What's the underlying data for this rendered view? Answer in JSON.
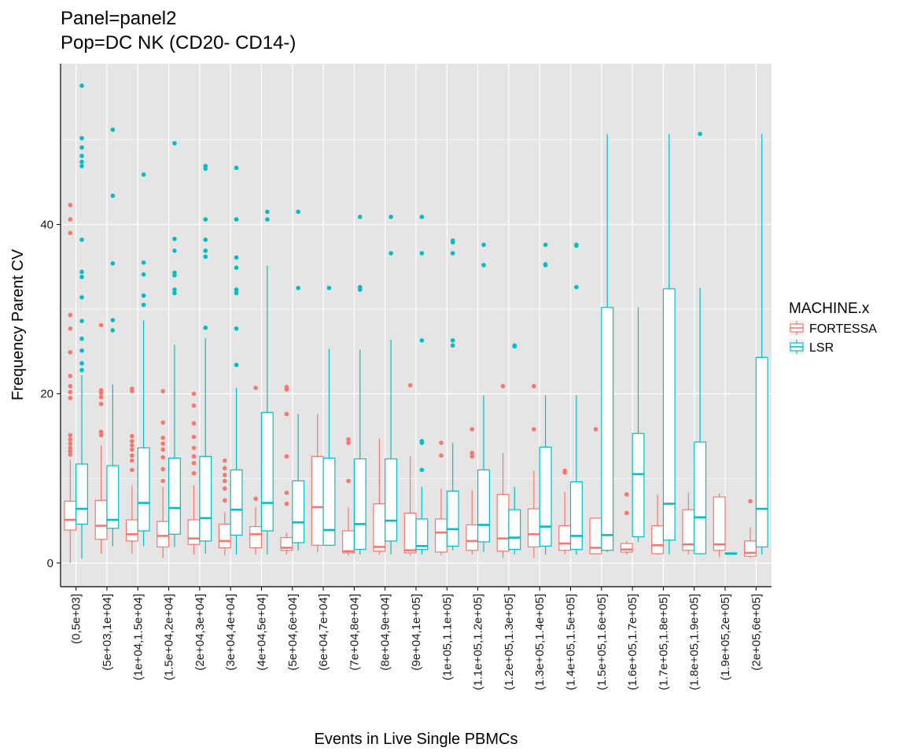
{
  "chart_data": {
    "type": "boxplot",
    "title": [
      "Panel=panel2",
      "Pop=DC NK (CD20- CD14-)"
    ],
    "xlabel": "Events in Live Single PBMCs",
    "ylabel": "Frequency Parent CV",
    "ylim": [
      -2.8,
      59
    ],
    "yticks": [
      0,
      20,
      40
    ],
    "grid": true,
    "legend": {
      "title": "MACHINE.x",
      "position": "right",
      "entries": [
        "FORTESSA",
        "LSR"
      ]
    },
    "colors": {
      "FORTESSA": "#F8766D",
      "LSR": "#00BFC4",
      "panel": "#E5E5E5",
      "grid": "#FFFFFF"
    },
    "categories": [
      "(0,5e+03]",
      "(5e+03,1e+04]",
      "(1e+04,1.5e+04]",
      "(1.5e+04,2e+04]",
      "(2e+04,3e+04]",
      "(3e+04,4e+04]",
      "(4e+04,5e+04]",
      "(5e+04,6e+04]",
      "(6e+04,7e+04]",
      "(7e+04,8e+04]",
      "(8e+04,9e+04]",
      "(9e+04,1e+05]",
      "(1e+05,1.1e+05]",
      "(1.1e+05,1.2e+05]",
      "(1.2e+05,1.3e+05]",
      "(1.3e+05,1.4e+05]",
      "(1.4e+05,1.5e+05]",
      "(1.5e+05,1.6e+05]",
      "(1.6e+05,1.7e+05]",
      "(1.7e+05,1.8e+05]",
      "(1.8e+05,1.9e+05]",
      "(1.9e+05,2e+05]",
      "(2e+05,6e+05]"
    ],
    "series": [
      {
        "name": "FORTESSA",
        "boxes": [
          {
            "min": 0,
            "q1": 3.9,
            "median": 5.1,
            "q3": 7.3,
            "max": 12.2,
            "outliers": [
              12.8,
              13.2,
              13.6,
              14.1,
              14.6,
              15.1,
              19.5,
              20.2,
              20.9,
              22.1,
              24.9,
              27.7,
              29.3,
              39.0,
              40.6,
              42.3
            ]
          },
          {
            "min": 1.1,
            "q1": 2.8,
            "median": 4.4,
            "q3": 7.4,
            "max": 13.9,
            "outliers": [
              15.1,
              15.5,
              18.8,
              19.6,
              20.1,
              20.4,
              28.1
            ]
          },
          {
            "min": 1.1,
            "q1": 2.6,
            "median": 3.4,
            "q3": 5.1,
            "max": 9.2,
            "outliers": [
              11.0,
              12.1,
              12.7,
              13.4,
              13.9,
              14.4,
              15.0,
              20.3,
              20.6
            ]
          },
          {
            "min": 0.6,
            "q1": 1.9,
            "median": 3.2,
            "q3": 4.9,
            "max": 9.0,
            "outliers": [
              9.7,
              11.1,
              12.5,
              13.4,
              14.1,
              14.8,
              16.6,
              20.3
            ]
          },
          {
            "min": 1.0,
            "q1": 2.2,
            "median": 2.9,
            "q3": 5.1,
            "max": 9.2,
            "outliers": [
              10.6,
              11.8,
              12.6,
              13.6,
              14.9,
              16.5,
              18.6,
              20.0
            ]
          },
          {
            "min": 0.9,
            "q1": 1.8,
            "median": 2.6,
            "q3": 4.6,
            "max": 6.0,
            "outliers": [
              7.4,
              8.8,
              9.7,
              10.4,
              11.2,
              12.1
            ]
          },
          {
            "min": 1.0,
            "q1": 1.8,
            "median": 3.4,
            "q3": 4.3,
            "max": 6.6,
            "outliers": [
              7.6,
              20.7
            ]
          },
          {
            "min": 1.0,
            "q1": 1.5,
            "median": 1.8,
            "q3": 3.0,
            "max": 3.6,
            "outliers": [
              7.0,
              8.3,
              12.6,
              17.6,
              20.5,
              20.8
            ]
          },
          {
            "min": 1.3,
            "q1": 2.1,
            "median": 6.6,
            "q3": 12.6,
            "max": 17.6,
            "outliers": []
          },
          {
            "min": 0.9,
            "q1": 1.2,
            "median": 1.4,
            "q3": 3.8,
            "max": 6.6,
            "outliers": [
              9.7,
              14.2,
              14.6
            ]
          },
          {
            "min": 1.0,
            "q1": 1.4,
            "median": 1.9,
            "q3": 7.0,
            "max": 14.7,
            "outliers": []
          },
          {
            "min": 0.9,
            "q1": 1.2,
            "median": 1.5,
            "q3": 5.9,
            "max": 12.6,
            "outliers": [
              21.0
            ]
          },
          {
            "min": 0.9,
            "q1": 1.3,
            "median": 3.6,
            "q3": 5.2,
            "max": 8.8,
            "outliers": [
              12.7,
              14.2
            ]
          },
          {
            "min": 1.0,
            "q1": 1.5,
            "median": 2.6,
            "q3": 4.5,
            "max": 8.6,
            "outliers": [
              12.6,
              13.0,
              15.8
            ]
          },
          {
            "min": 0.6,
            "q1": 1.4,
            "median": 2.9,
            "q3": 8.1,
            "max": 13.0,
            "outliers": [
              20.9
            ]
          },
          {
            "min": 0.6,
            "q1": 1.9,
            "median": 3.4,
            "q3": 6.4,
            "max": 10.9,
            "outliers": [
              15.8,
              20.9
            ]
          },
          {
            "min": 1.0,
            "q1": 1.5,
            "median": 2.3,
            "q3": 4.4,
            "max": 8.4,
            "outliers": [
              10.7,
              10.9
            ]
          },
          {
            "min": 1.0,
            "q1": 1.1,
            "median": 1.8,
            "q3": 5.3,
            "max": 5.3,
            "outliers": [
              15.8
            ]
          },
          {
            "min": 1.0,
            "q1": 1.3,
            "median": 1.6,
            "q3": 2.3,
            "max": 2.6,
            "outliers": [
              5.9,
              8.1
            ]
          },
          {
            "min": 1.0,
            "q1": 1.1,
            "median": 2.1,
            "q3": 4.4,
            "max": 8.1,
            "outliers": []
          },
          {
            "min": 1.0,
            "q1": 1.5,
            "median": 2.2,
            "q3": 6.3,
            "max": 8.3,
            "outliers": []
          },
          {
            "min": 0.7,
            "q1": 1.5,
            "median": 2.2,
            "q3": 7.8,
            "max": 8.2,
            "outliers": []
          },
          {
            "min": 0.6,
            "q1": 0.8,
            "median": 1.2,
            "q3": 2.6,
            "max": 4.2,
            "outliers": [
              7.3
            ]
          }
        ]
      },
      {
        "name": "LSR",
        "boxes": [
          {
            "min": 0.5,
            "q1": 4.6,
            "median": 6.4,
            "q3": 11.7,
            "max": 22.2,
            "outliers": [
              22.8,
              23.6,
              25.1,
              26.5,
              28.6,
              31.4,
              33.8,
              34.4,
              38.2,
              46.9,
              47.4,
              48.1,
              49.1,
              50.2,
              56.4
            ]
          },
          {
            "min": 2.0,
            "q1": 4.1,
            "median": 5.1,
            "q3": 11.5,
            "max": 21.1,
            "outliers": [
              27.5,
              28.7,
              35.4,
              43.4,
              51.2
            ]
          },
          {
            "min": 2.0,
            "q1": 3.8,
            "median": 7.1,
            "q3": 13.6,
            "max": 28.7,
            "outliers": [
              30.5,
              31.6,
              34.1,
              35.5,
              45.9
            ]
          },
          {
            "min": 1.9,
            "q1": 3.4,
            "median": 6.5,
            "q3": 12.4,
            "max": 25.8,
            "outliers": [
              31.9,
              32.3,
              34.0,
              34.3,
              36.9,
              38.3,
              49.6
            ]
          },
          {
            "min": 1.1,
            "q1": 2.6,
            "median": 5.3,
            "q3": 12.6,
            "max": 26.6,
            "outliers": [
              27.8,
              36.2,
              36.9,
              38.2,
              40.6,
              46.6,
              46.9
            ]
          },
          {
            "min": 1.0,
            "q1": 3.3,
            "median": 6.3,
            "q3": 11.0,
            "max": 20.7,
            "outliers": [
              23.4,
              27.7,
              31.9,
              32.3,
              34.9,
              36.1,
              40.6,
              46.7
            ]
          },
          {
            "min": 1.0,
            "q1": 3.8,
            "median": 7.1,
            "q3": 17.8,
            "max": 35.1,
            "outliers": [
              40.6,
              41.5
            ]
          },
          {
            "min": 1.5,
            "q1": 2.4,
            "median": 4.8,
            "q3": 9.7,
            "max": 17.6,
            "outliers": [
              32.5,
              41.5
            ]
          },
          {
            "min": 2.0,
            "q1": 2.1,
            "median": 3.9,
            "q3": 12.4,
            "max": 25.3,
            "outliers": [
              32.5
            ]
          },
          {
            "min": 1.0,
            "q1": 1.6,
            "median": 4.6,
            "q3": 12.3,
            "max": 25.2,
            "outliers": [
              32.3,
              32.6,
              40.9
            ]
          },
          {
            "min": 1.0,
            "q1": 2.6,
            "median": 5.0,
            "q3": 12.3,
            "max": 26.4,
            "outliers": [
              36.6,
              40.9
            ]
          },
          {
            "min": 1.0,
            "q1": 1.6,
            "median": 2.0,
            "q3": 5.2,
            "max": 9.0,
            "outliers": [
              11.0,
              14.2,
              14.4,
              26.3,
              36.6,
              40.9
            ]
          },
          {
            "min": 1.5,
            "q1": 2.0,
            "median": 4.0,
            "q3": 8.5,
            "max": 14.2,
            "outliers": [
              25.7,
              26.3,
              36.6,
              37.9,
              38.1
            ]
          },
          {
            "min": 1.3,
            "q1": 2.5,
            "median": 4.5,
            "q3": 11.0,
            "max": 19.8,
            "outliers": [
              35.2,
              37.6
            ]
          },
          {
            "min": 1.0,
            "q1": 1.6,
            "median": 3.0,
            "q3": 6.3,
            "max": 9.0,
            "outliers": [
              25.6,
              25.7
            ]
          },
          {
            "min": 1.0,
            "q1": 2.0,
            "median": 4.3,
            "q3": 13.7,
            "max": 19.8,
            "outliers": [
              35.2,
              35.3,
              37.6
            ]
          },
          {
            "min": 1.0,
            "q1": 1.6,
            "median": 3.2,
            "q3": 9.6,
            "max": 19.8,
            "outliers": [
              32.6,
              37.5,
              37.6
            ]
          },
          {
            "min": 1.3,
            "q1": 1.5,
            "median": 3.3,
            "q3": 30.2,
            "max": 50.7,
            "outliers": []
          },
          {
            "min": 2.5,
            "q1": 3.1,
            "median": 10.5,
            "q3": 15.3,
            "max": 30.2,
            "outliers": []
          },
          {
            "min": 1.0,
            "q1": 2.7,
            "median": 7.0,
            "q3": 32.4,
            "max": 50.7,
            "outliers": []
          },
          {
            "min": 1.0,
            "q1": 1.1,
            "median": 5.4,
            "q3": 14.3,
            "max": 32.5,
            "outliers": [
              50.7
            ]
          },
          {
            "min": 1.1,
            "q1": 1.1,
            "median": 1.1,
            "q3": 1.2,
            "max": 1.2,
            "outliers": []
          },
          {
            "min": 1.0,
            "q1": 1.9,
            "median": 6.4,
            "q3": 24.3,
            "max": 50.7,
            "outliers": []
          }
        ]
      }
    ]
  }
}
